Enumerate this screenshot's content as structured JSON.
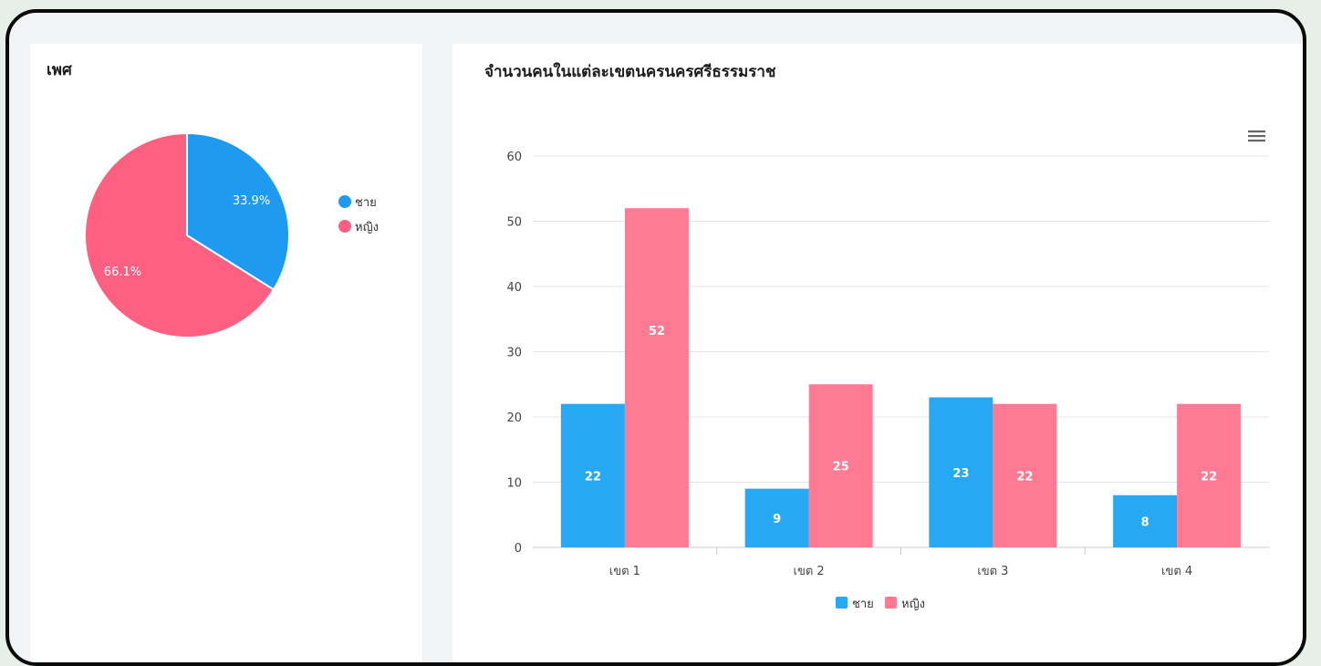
{
  "pie_panel": {
    "title": "เพศ",
    "legend": [
      {
        "label": "ชาย",
        "color": "#1e9bf0"
      },
      {
        "label": "หญิง",
        "color": "#ff5f80"
      }
    ]
  },
  "bar_panel": {
    "title": "จำนวนคนในแต่ละเขตนครนครศรีธรรมราช",
    "menu_icon": "hamburger-menu-icon"
  },
  "chart_data": [
    {
      "type": "pie",
      "title": "เพศ",
      "slices": [
        {
          "label": "ชาย",
          "value": 33.9,
          "display": "33.9%",
          "color": "#1e9bf0"
        },
        {
          "label": "หญิง",
          "value": 66.1,
          "display": "66.1%",
          "color": "#ff5f80"
        }
      ],
      "legend_position": "right"
    },
    {
      "type": "bar",
      "title": "จำนวนคนในแต่ละเขตนครนครศรีธรรมราช",
      "categories": [
        "เขต 1",
        "เขต 2",
        "เขต 3",
        "เขต 4"
      ],
      "series": [
        {
          "name": "ชาย",
          "values": [
            22,
            9,
            23,
            8
          ],
          "color": "#26a8f2"
        },
        {
          "name": "หญิง",
          "values": [
            52,
            25,
            22,
            22
          ],
          "color": "#ff7a92"
        }
      ],
      "y_ticks": [
        0,
        10,
        20,
        30,
        40,
        50,
        60
      ],
      "ylim": [
        0,
        60
      ],
      "grid": true,
      "legend_position": "bottom"
    }
  ]
}
